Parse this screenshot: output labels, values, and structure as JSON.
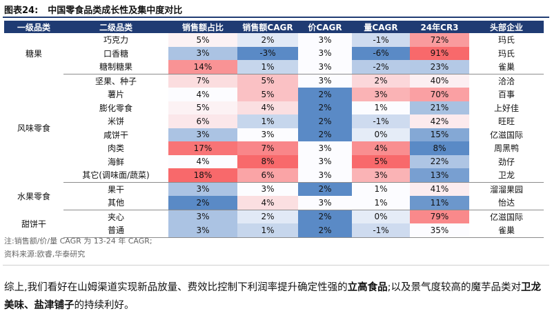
{
  "figure": {
    "number": "图表24:",
    "title": "中国零食品类成长性及集中度对比"
  },
  "table": {
    "headers": [
      "一级品类",
      "二级品类",
      "销售额占比",
      "销售额CAGR",
      "价CAGR",
      "量CAGR",
      "24年CR3",
      "头部企业"
    ],
    "groups": [
      {
        "category": "糖果",
        "rows": [
          {
            "sub": "巧克力",
            "share": "5%",
            "sales_cagr": "2%",
            "price_cagr": "3%",
            "vol_cagr": "-1%",
            "cr3": "72%",
            "leader": "玛氏"
          },
          {
            "sub": "口香糖",
            "share": "3%",
            "sales_cagr": "-3%",
            "price_cagr": "3%",
            "vol_cagr": "-6%",
            "cr3": "91%",
            "leader": "玛氏"
          },
          {
            "sub": "糖制糖果",
            "share": "14%",
            "sales_cagr": "1%",
            "price_cagr": "3%",
            "vol_cagr": "-2%",
            "cr3": "23%",
            "leader": "雀巢"
          }
        ]
      },
      {
        "category": "风味零食",
        "rows": [
          {
            "sub": "坚果、种子",
            "share": "7%",
            "sales_cagr": "5%",
            "price_cagr": "3%",
            "vol_cagr": "2%",
            "cr3": "40%",
            "leader": "洽洽"
          },
          {
            "sub": "薯片",
            "share": "4%",
            "sales_cagr": "5%",
            "price_cagr": "2%",
            "vol_cagr": "3%",
            "cr3": "70%",
            "leader": "百事"
          },
          {
            "sub": "膨化零食",
            "share": "5%",
            "sales_cagr": "4%",
            "price_cagr": "2%",
            "vol_cagr": "1%",
            "cr3": "21%",
            "leader": "上好佳"
          },
          {
            "sub": "米饼",
            "share": "6%",
            "sales_cagr": "1%",
            "price_cagr": "2%",
            "vol_cagr": "-1%",
            "cr3": "42%",
            "leader": "旺旺"
          },
          {
            "sub": "咸饼干",
            "share": "3%",
            "sales_cagr": "3%",
            "price_cagr": "2%",
            "vol_cagr": "0%",
            "cr3": "15%",
            "leader": "亿滋国际"
          },
          {
            "sub": "肉类",
            "share": "17%",
            "sales_cagr": "7%",
            "price_cagr": "3%",
            "vol_cagr": "4%",
            "cr3": "8%",
            "leader": "周黑鸭"
          },
          {
            "sub": "海鲜",
            "share": "4%",
            "sales_cagr": "8%",
            "price_cagr": "3%",
            "vol_cagr": "5%",
            "cr3": "22%",
            "leader": "劲仔"
          },
          {
            "sub": "其它(调味面/蔬菜)",
            "share": "18%",
            "sales_cagr": "6%",
            "price_cagr": "3%",
            "vol_cagr": "3%",
            "cr3": "13%",
            "leader": "卫龙"
          }
        ]
      },
      {
        "category": "水果零食",
        "rows": [
          {
            "sub": "果干",
            "share": "3%",
            "sales_cagr": "3%",
            "price_cagr": "2%",
            "vol_cagr": "1%",
            "cr3": "41%",
            "leader": "溜溜果园"
          },
          {
            "sub": "其他",
            "share": "2%",
            "sales_cagr": "4%",
            "price_cagr": "3%",
            "vol_cagr": "1%",
            "cr3": "11%",
            "leader": "怡达"
          }
        ]
      },
      {
        "category": "甜饼干",
        "rows": [
          {
            "sub": "夹心",
            "share": "3%",
            "sales_cagr": "2%",
            "price_cagr": "2%",
            "vol_cagr": "0%",
            "cr3": "79%",
            "leader": "亿滋国际"
          },
          {
            "sub": "普通",
            "share": "3%",
            "sales_cagr": "1%",
            "price_cagr": "2%",
            "vol_cagr": "-1%",
            "cr3": "35%",
            "leader": "雀巢"
          }
        ]
      }
    ]
  },
  "notes": {
    "note": "注:销售额/价/量 CAGR 为 13-24 年 CAGR;",
    "source": "资料来源:欧睿,华泰研究"
  },
  "conclusion": {
    "p1": "综上,我们看好在山姆渠道实现新品放量、费效比控制下利润率提升确定性强的",
    "b1": "立高食品",
    "p2": ";以及景气度较高的魔芋品类对",
    "b2": "卫龙美味、盐津铺子",
    "p3": "的持续利好。"
  },
  "colors": {
    "header_bg": "#1f3b73",
    "high": "#f8696b",
    "mid": "#fcfcff",
    "low": "#5a8ac6"
  }
}
